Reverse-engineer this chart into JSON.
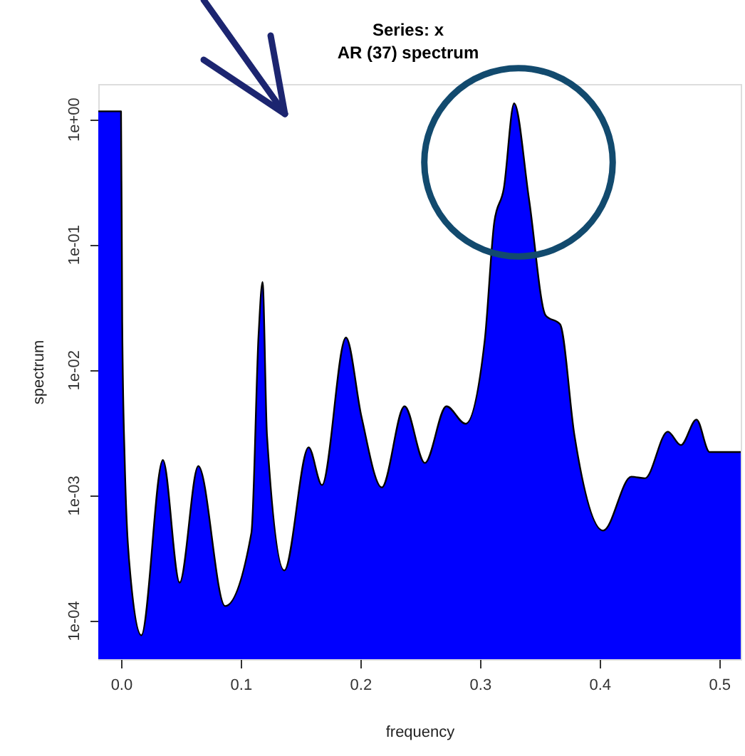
{
  "chart_data": {
    "type": "area",
    "title": "Series: x",
    "subtitle": "AR (37) spectrum",
    "xlabel": "frequency",
    "ylabel": "spectrum",
    "color": "#0000ff",
    "log": "y",
    "grid": false,
    "x": [
      -0.019,
      0.0,
      0.001,
      0.003,
      0.008,
      0.017,
      0.035,
      0.049,
      0.0646,
      0.087,
      0.109,
      0.115,
      0.1183,
      0.122,
      0.1365,
      0.1568,
      0.168,
      0.188,
      0.201,
      0.218,
      0.237,
      0.254,
      0.272,
      0.288,
      0.304,
      0.312,
      0.32,
      0.3286,
      0.341,
      0.355,
      0.367,
      0.379,
      0.403,
      0.4266,
      0.438,
      0.457,
      0.468,
      0.481,
      0.492,
      0.518
    ],
    "values": [
      1.15,
      1.15,
      0.024,
      0.002,
      0.00022,
      7.6e-05,
      0.0019,
      0.0002,
      0.0017,
      0.00013,
      0.0005,
      0.019,
      0.05,
      0.003,
      0.00025,
      0.0024,
      0.0012,
      0.018,
      0.0042,
      0.00115,
      0.0051,
      0.0018,
      0.0051,
      0.0037,
      0.017,
      0.15,
      0.28,
      1.33,
      0.23,
      0.027,
      0.023,
      0.003,
      0.00052,
      0.0014,
      0.00136,
      0.0032,
      0.0025,
      0.004,
      0.0022,
      0.0022
    ],
    "xlim": [
      -0.019,
      0.518
    ],
    "ylim": [
      4.9e-05,
      1.9
    ],
    "xticks": [
      {
        "value": 0,
        "label": "0.0"
      },
      0.1,
      0.2,
      0.3,
      0.4,
      0.5
    ],
    "yticks": [
      {
        "value": 0.0001,
        "label": "1e-04"
      },
      {
        "value": 0.001,
        "label": "1e-03"
      },
      {
        "value": 0.01,
        "label": "1e-02"
      },
      {
        "value": 0.1,
        "label": "1e-01"
      },
      {
        "value": 1,
        "label": "1e+00"
      }
    ]
  }
}
